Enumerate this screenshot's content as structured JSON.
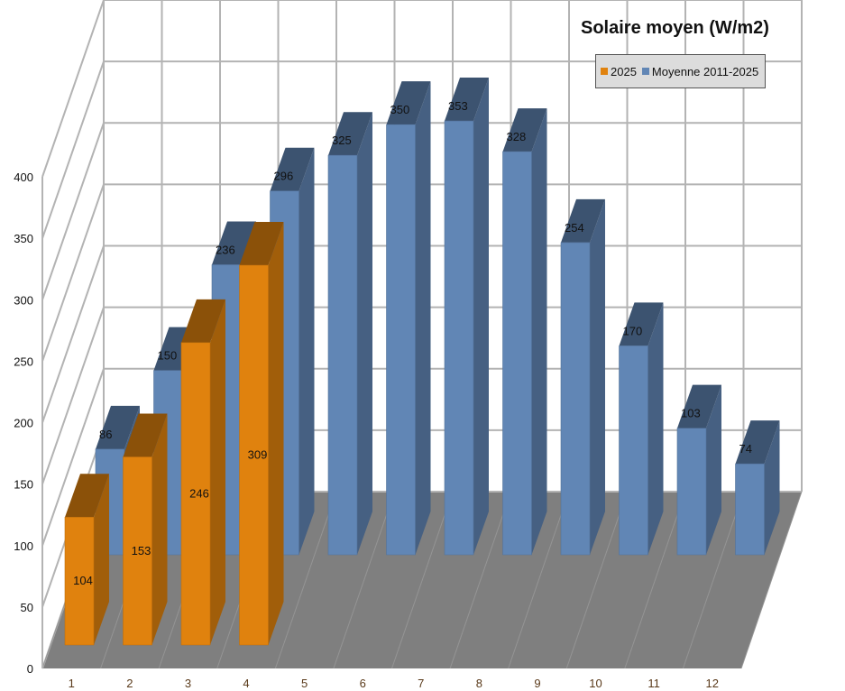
{
  "chart_data": {
    "type": "bar",
    "title": "Solaire moyen (W/m2)",
    "categories": [
      "1",
      "2",
      "3",
      "4",
      "5",
      "6",
      "7",
      "8",
      "9",
      "10",
      "11",
      "12"
    ],
    "series": [
      {
        "name": "2025",
        "color": "#e0820e",
        "values": [
          104,
          153,
          246,
          309,
          null,
          null,
          null,
          null,
          null,
          null,
          null,
          null
        ]
      },
      {
        "name": "Moyenne 2011-2025",
        "color": "#6186b5",
        "values": [
          86,
          150,
          236,
          296,
          325,
          350,
          353,
          328,
          254,
          170,
          103,
          74
        ]
      }
    ],
    "ylim": [
      0,
      400
    ],
    "yticks": [
      0,
      50,
      100,
      150,
      200,
      250,
      300,
      350,
      400
    ],
    "legend": "top-right",
    "grid": true
  }
}
